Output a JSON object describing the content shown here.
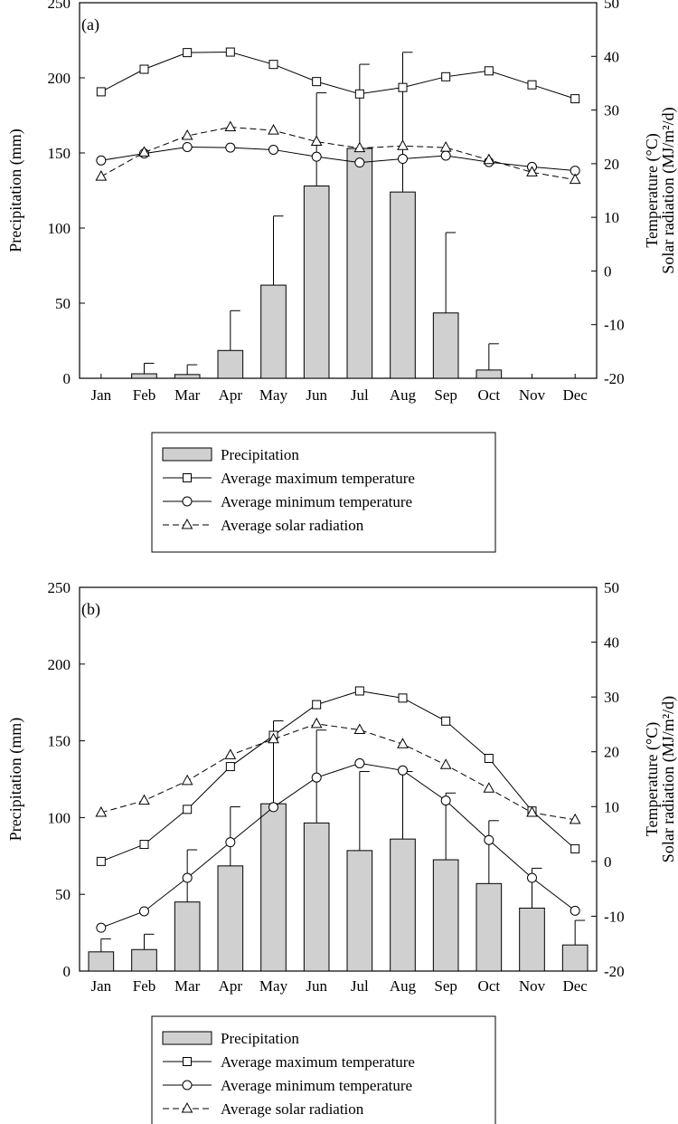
{
  "chart_data": [
    {
      "type": "bar",
      "panel_label": "(a)",
      "categories": [
        "Jan",
        "Feb",
        "Mar",
        "Apr",
        "May",
        "Jun",
        "Jul",
        "Aug",
        "Sep",
        "Oct",
        "Nov",
        "Dec"
      ],
      "ylabel": "Precipitation (mm)",
      "ylim": [
        0,
        250
      ],
      "yticks": [
        0,
        50,
        100,
        150,
        200,
        250
      ],
      "y2label_line1": "Temperature (°C)",
      "y2label_line2": "Solar radiation (MJ/m²/d)",
      "y2lim": [
        -20,
        50
      ],
      "y2ticks": [
        -20,
        -10,
        0,
        10,
        20,
        30,
        40,
        50
      ],
      "bars": {
        "name": "Precipitation",
        "values": [
          0,
          3,
          2.5,
          18.5,
          62,
          128,
          153,
          124,
          43.5,
          5.5,
          0,
          0
        ],
        "error_upper": [
          null,
          10,
          9,
          45,
          108,
          190,
          209,
          217,
          97,
          23,
          null,
          null
        ]
      },
      "series": [
        {
          "name": "Average maximum temperature",
          "axis": "right",
          "marker": "square",
          "dash": "solid",
          "values": [
            33.4,
            37.6,
            40.7,
            40.8,
            38.5,
            35.3,
            33.0,
            34.2,
            36.2,
            37.3,
            34.7,
            32.1
          ]
        },
        {
          "name": "Average minimum temperature",
          "axis": "right",
          "marker": "circle",
          "dash": "solid",
          "values": [
            20.6,
            21.9,
            23.1,
            23.0,
            22.6,
            21.3,
            20.2,
            20.9,
            21.5,
            20.3,
            19.4,
            18.7
          ]
        },
        {
          "name": "Average solar radiation",
          "axis": "right",
          "marker": "triangle",
          "dash": "dashed",
          "values": [
            17.6,
            22.1,
            25.2,
            26.8,
            26.2,
            24.1,
            22.9,
            23.3,
            23.0,
            20.7,
            18.4,
            17.0
          ]
        }
      ],
      "legend_entries": [
        "Precipitation",
        "Average maximum temperature",
        "Average minimum temperature",
        "Average solar radiation"
      ],
      "legend_placement": "below"
    },
    {
      "type": "bar",
      "panel_label": "(b)",
      "categories": [
        "Jan",
        "Feb",
        "Mar",
        "Apr",
        "May",
        "Jun",
        "Jul",
        "Aug",
        "Sep",
        "Oct",
        "Nov",
        "Dec"
      ],
      "ylabel": "Precipitation (mm)",
      "ylim": [
        0,
        250
      ],
      "yticks": [
        0,
        50,
        100,
        150,
        200,
        250
      ],
      "y2label_line1": "Temperature (°C)",
      "y2label_line2": "Solar radiation (MJ/m²/d)",
      "y2lim": [
        -20,
        50
      ],
      "y2ticks": [
        -20,
        -10,
        0,
        10,
        20,
        30,
        40,
        50
      ],
      "bars": {
        "name": "Precipitation",
        "values": [
          12.5,
          14,
          45,
          68.5,
          109,
          96.5,
          78.5,
          86,
          72.5,
          57,
          41,
          17
        ],
        "error_upper": [
          21,
          24,
          79,
          107,
          163,
          157,
          130,
          130,
          116,
          98,
          67,
          33
        ]
      },
      "series": [
        {
          "name": "Average maximum temperature",
          "axis": "right",
          "marker": "square",
          "dash": "solid",
          "values": [
            0.0,
            3.1,
            9.5,
            17.3,
            23.0,
            28.6,
            31.1,
            29.8,
            25.6,
            18.8,
            9.2,
            2.3
          ]
        },
        {
          "name": "Average minimum temperature",
          "axis": "right",
          "marker": "circle",
          "dash": "solid",
          "values": [
            -12.1,
            -9.1,
            -3.0,
            3.5,
            9.9,
            15.3,
            17.9,
            16.6,
            11.1,
            3.9,
            -3.0,
            -9.0
          ]
        },
        {
          "name": "Average solar radiation",
          "axis": "right",
          "marker": "triangle",
          "dash": "dashed",
          "values": [
            8.9,
            11.1,
            14.7,
            19.4,
            22.3,
            25.1,
            24.0,
            21.4,
            17.6,
            13.3,
            8.9,
            7.6
          ]
        }
      ],
      "legend_entries": [
        "Precipitation",
        "Average maximum temperature",
        "Average minimum temperature",
        "Average solar radiation"
      ],
      "legend_placement": "below"
    }
  ]
}
